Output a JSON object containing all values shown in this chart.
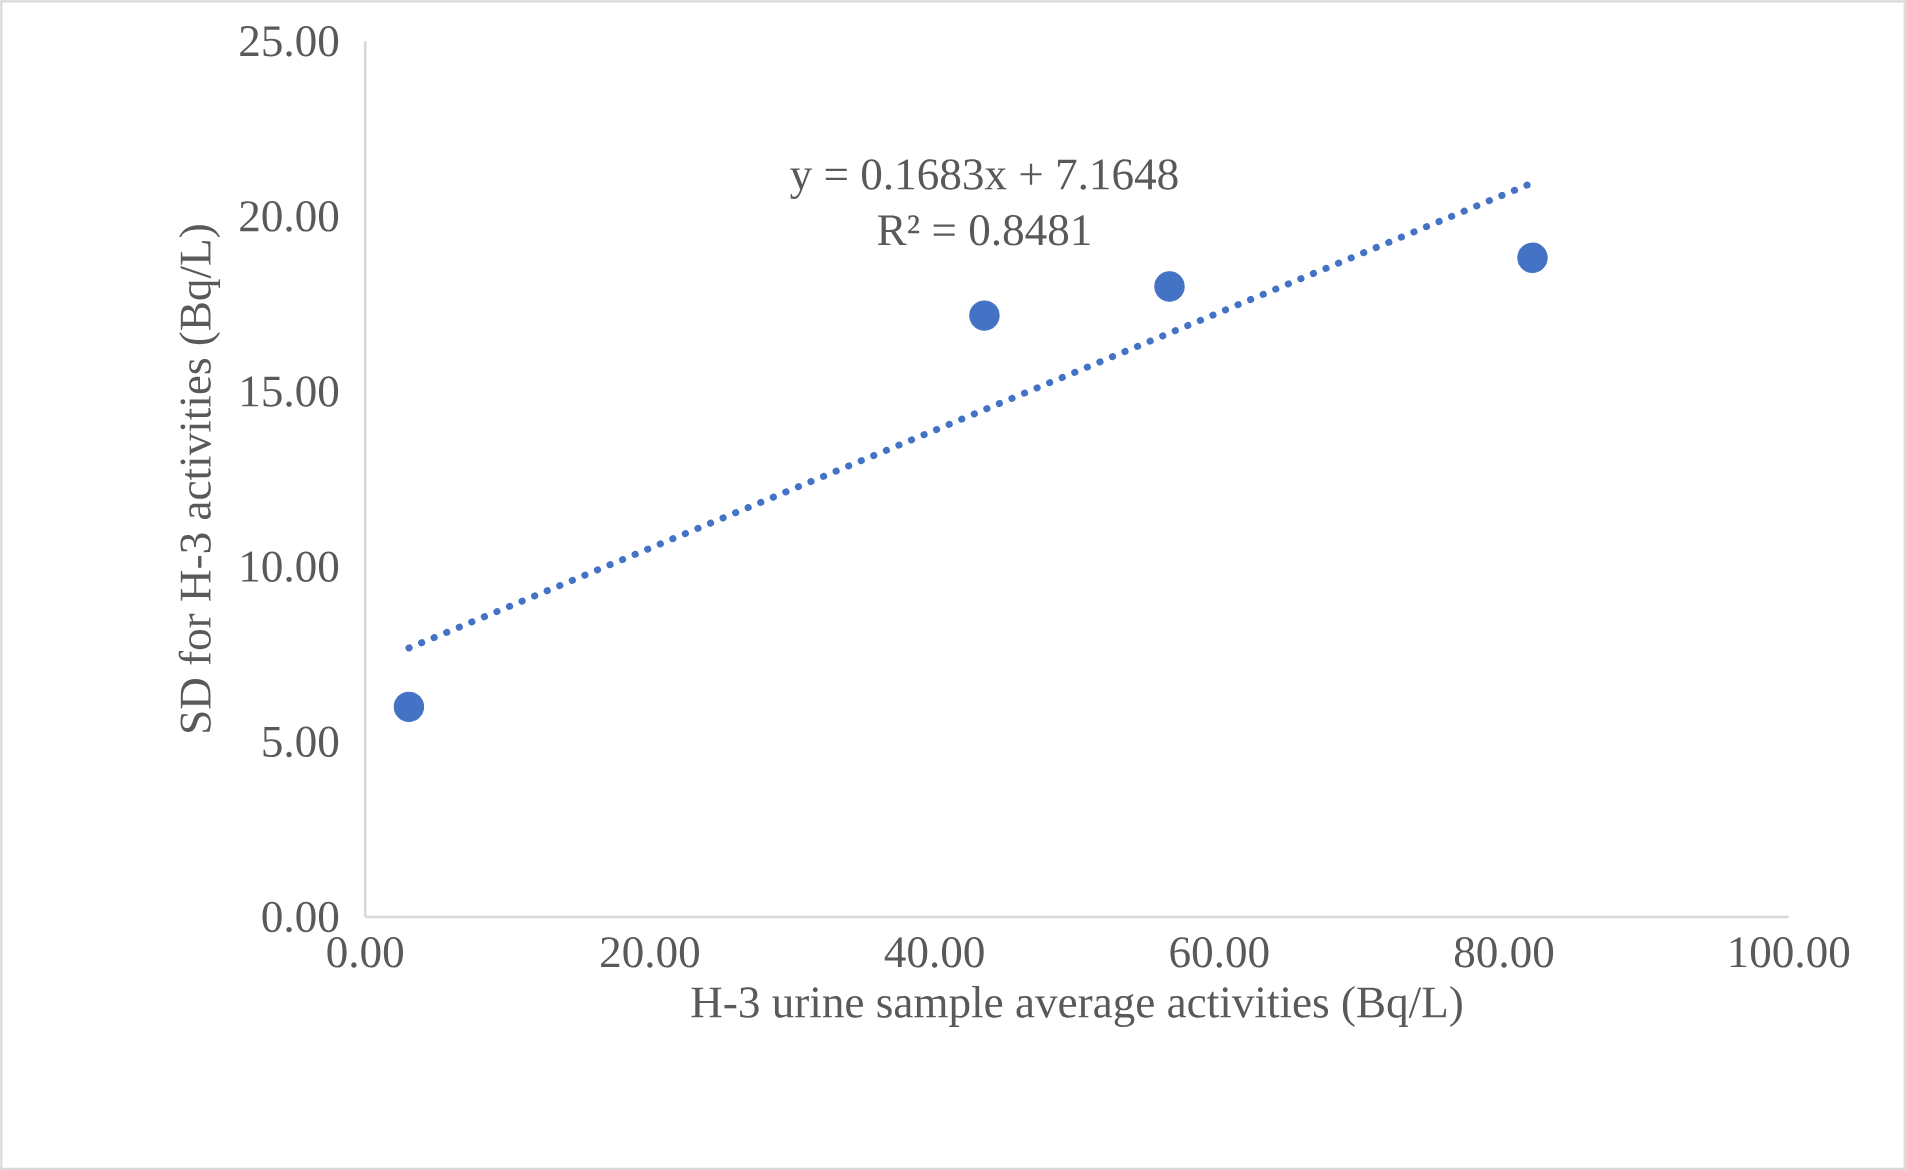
{
  "chart_data": {
    "type": "scatter",
    "xlabel": "H-3 urine sample average activities (Bq/L)",
    "ylabel": "SD for H-3 activities (Bq/L)",
    "annotations": [
      "y = 0.1683x + 7.1648",
      "R² = 0.8481"
    ],
    "series": [
      {
        "color": "#4472c4",
        "x": [
          3.07,
          43.5,
          56.5,
          82.0
        ],
        "values": [
          6.0,
          17.17,
          18.0,
          18.82
        ],
        "marker": "circle"
      },
      {
        "type": "line",
        "color": "#4472c4",
        "x": [
          3.07,
          82.0
        ],
        "values": [
          7.68,
          20.96
        ],
        "line_style": "dotted",
        "marker": "none"
      }
    ],
    "xlim": [
      0,
      100
    ],
    "ylim": [
      0,
      25
    ],
    "xticks": [
      {
        "value": 0,
        "label": "0.00"
      },
      {
        "value": 20,
        "label": "20.00"
      },
      {
        "value": 40,
        "label": "40.00"
      },
      {
        "value": 60,
        "label": "60.00"
      },
      {
        "value": 80,
        "label": "80.00"
      },
      {
        "value": 100,
        "label": "100.00"
      }
    ],
    "yticks": [
      {
        "value": 0,
        "label": "0.00"
      },
      {
        "value": 5,
        "label": "5.00"
      },
      {
        "value": 10,
        "label": "10.00"
      },
      {
        "value": 15,
        "label": "15.00"
      },
      {
        "value": 20,
        "label": "20.00"
      },
      {
        "value": 25,
        "label": "25.00"
      }
    ],
    "grid": false,
    "legend": false
  }
}
